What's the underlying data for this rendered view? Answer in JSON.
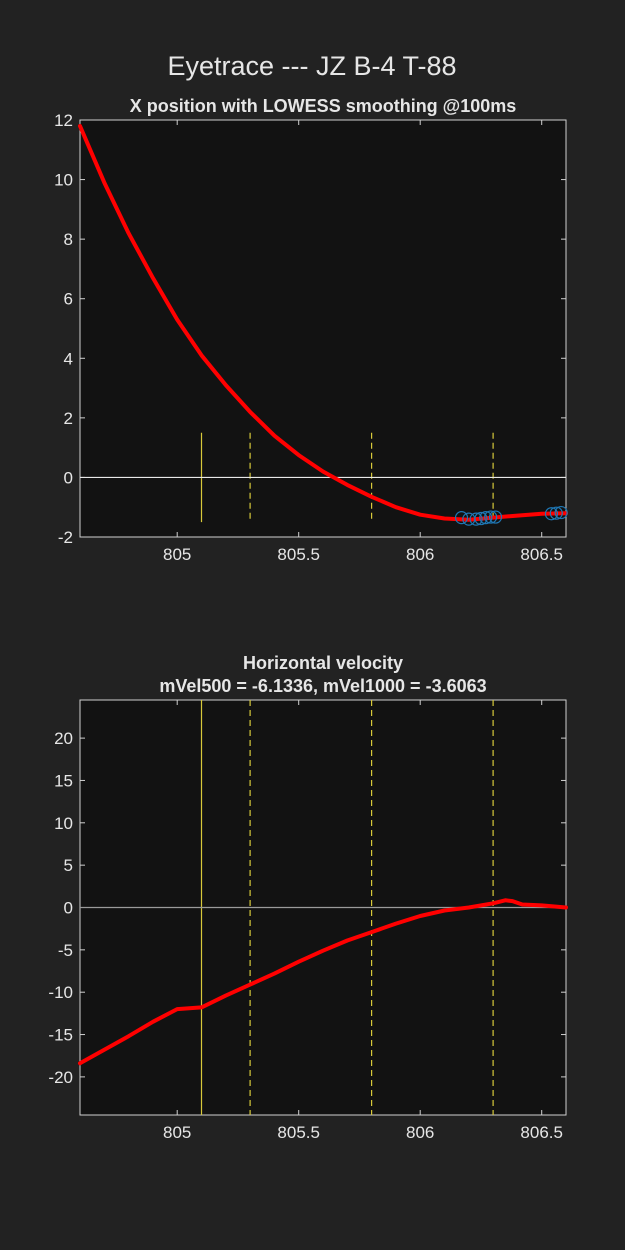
{
  "figure": {
    "suptitle": "Eyetrace --- JZ B-4 T-88",
    "background": "#222222",
    "axes_background": "#121212"
  },
  "chart_data": [
    {
      "type": "line",
      "title": "X position with LOWESS smoothing @100ms",
      "xlabel": "",
      "ylabel": "",
      "xlim": [
        804.6,
        806.6
      ],
      "ylim": [
        -2,
        12
      ],
      "xticks": [
        805,
        805.5,
        806,
        806.5
      ],
      "xtick_labels": [
        "805",
        "805.5",
        "806",
        "806.5"
      ],
      "yticks": [
        -2,
        0,
        2,
        4,
        6,
        8,
        10,
        12
      ],
      "ytick_labels": [
        "-2",
        "0",
        "2",
        "4",
        "6",
        "8",
        "10",
        "12"
      ],
      "zero_line": 0,
      "series": [
        {
          "color": "#ff0000",
          "x": [
            804.6,
            804.7,
            804.8,
            804.9,
            805.0,
            805.1,
            805.2,
            805.3,
            805.4,
            805.5,
            805.6,
            805.7,
            805.8,
            805.9,
            806.0,
            806.1,
            806.2,
            806.3,
            806.4,
            806.5,
            806.6
          ],
          "y": [
            11.8,
            9.9,
            8.2,
            6.7,
            5.3,
            4.1,
            3.1,
            2.2,
            1.4,
            0.75,
            0.2,
            -0.25,
            -0.65,
            -1.0,
            -1.25,
            -1.38,
            -1.42,
            -1.35,
            -1.28,
            -1.22,
            -1.2
          ]
        }
      ],
      "markers": {
        "color": "#1f77b4",
        "x": [
          806.17,
          806.2,
          806.23,
          806.25,
          806.27,
          806.29,
          806.31,
          806.54,
          806.56,
          806.58
        ],
        "y": [
          -1.35,
          -1.4,
          -1.4,
          -1.38,
          -1.35,
          -1.33,
          -1.33,
          -1.22,
          -1.2,
          -1.18
        ]
      },
      "event_lines": {
        "color": "#d7c93a",
        "range": [
          -1.5,
          1.5
        ],
        "solid": [
          805.1
        ],
        "dashed": [
          805.3,
          805.8,
          806.3
        ]
      }
    },
    {
      "type": "line",
      "title": "Horizontal velocity",
      "subtitle": "mVel500 = -6.1336, mVel1000 = -3.6063",
      "xlabel": "",
      "ylabel": "",
      "xlim": [
        804.6,
        806.6
      ],
      "ylim": [
        -24.5,
        24.5
      ],
      "xticks": [
        805,
        805.5,
        806,
        806.5
      ],
      "xtick_labels": [
        "805",
        "805.5",
        "806",
        "806.5"
      ],
      "yticks": [
        -20,
        -15,
        -10,
        -5,
        0,
        5,
        10,
        15,
        20
      ],
      "ytick_labels": [
        "-20",
        "-15",
        "-10",
        "-5",
        "0",
        "5",
        "10",
        "15",
        "20"
      ],
      "zero_line": 0,
      "series": [
        {
          "color": "#ff0000",
          "x": [
            804.6,
            804.7,
            804.8,
            804.9,
            805.0,
            805.1,
            805.2,
            805.3,
            805.4,
            805.5,
            805.6,
            805.7,
            805.8,
            805.9,
            806.0,
            806.1,
            806.2,
            806.3,
            806.35,
            806.38,
            806.42,
            806.5,
            806.6
          ],
          "y": [
            -18.4,
            -16.8,
            -15.2,
            -13.5,
            -12.0,
            -11.8,
            -10.4,
            -9.1,
            -7.8,
            -6.4,
            -5.1,
            -3.9,
            -2.9,
            -1.9,
            -1.0,
            -0.35,
            0.0,
            0.5,
            0.85,
            0.75,
            0.35,
            0.25,
            0.0
          ]
        }
      ],
      "event_lines": {
        "color": "#d7c93a",
        "range": "full",
        "solid": [
          805.1
        ],
        "dashed": [
          805.3,
          805.8,
          806.3
        ]
      }
    }
  ]
}
